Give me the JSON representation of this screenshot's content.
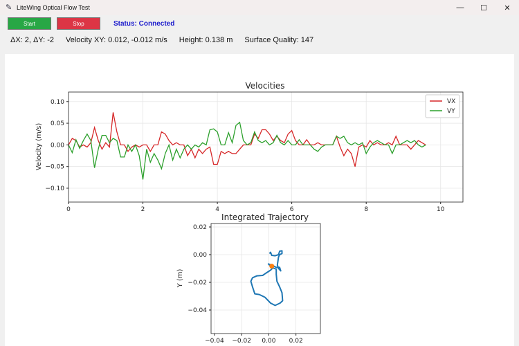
{
  "window": {
    "title": "LiteWing Optical Flow Test",
    "controls": {
      "minimize": "—",
      "maximize": "☐",
      "close": "✕"
    }
  },
  "toolbar": {
    "start_label": "Start",
    "stop_label": "Stop",
    "status": "Status: Connected",
    "start_color": "#28a745",
    "stop_color": "#dc3545",
    "status_color": "#1a1acc"
  },
  "readouts": {
    "delta": "ΔX: 2, ΔY: -2",
    "velocity": "Velocity XY: 0.012, -0.012 m/s",
    "height": "Height: 0.138 m",
    "surface_quality": "Surface Quality: 147"
  },
  "chart_data": [
    {
      "type": "line",
      "title": "Velocities",
      "xlabel": "",
      "ylabel": "Velocity (m/s)",
      "xlim": [
        0,
        10.6
      ],
      "ylim": [
        -0.132,
        0.122
      ],
      "xticks": [
        "0",
        "2",
        "4",
        "6",
        "8",
        "10"
      ],
      "yticks": [
        "0.10",
        "0.05",
        "0.00",
        "−0.05",
        "−0.10"
      ],
      "grid": true,
      "legend": "top-right",
      "x_start": 0,
      "x_step": 0.1,
      "series": [
        {
          "name": "VX",
          "color": "#d62728",
          "values": [
            0,
            0.015,
            0.01,
            -0.005,
            0,
            -0.005,
            0.005,
            0.04,
            0.01,
            -0.01,
            0.005,
            -0.005,
            0.075,
            0.03,
            0,
            0,
            -0.015,
            -0.005,
            0,
            -0.005,
            0,
            0,
            -0.015,
            0,
            0,
            0.03,
            0.025,
            0.01,
            0,
            0.005,
            0,
            0,
            -0.025,
            -0.01,
            -0.03,
            -0.01,
            -0.02,
            -0.01,
            -0.005,
            -0.045,
            -0.045,
            -0.015,
            -0.02,
            -0.015,
            -0.02,
            -0.02,
            -0.01,
            0,
            0,
            0,
            0.025,
            0.015,
            0.035,
            0.035,
            0.025,
            0.01,
            0.02,
            0.01,
            0.005,
            0.025,
            0.033,
            0.01,
            0,
            0,
            0.012,
            0,
            0,
            0.005,
            0,
            0,
            0,
            0,
            0.02,
            -0.005,
            -0.025,
            -0.01,
            -0.02,
            -0.05,
            -0.005,
            0,
            -0.005,
            0.01,
            0,
            0.005,
            0,
            0,
            0.005,
            0,
            0.02,
            0,
            0,
            0,
            -0.01,
            0,
            0.01,
            0.005,
            0
          ]
        },
        {
          "name": "VY",
          "color": "#2ca02c",
          "values": [
            0,
            -0.018,
            0.012,
            -0.008,
            0.01,
            0.025,
            0.01,
            -0.053,
            -0.01,
            0.022,
            0.022,
            0.005,
            0.015,
            0.01,
            -0.028,
            -0.028,
            0,
            -0.015,
            0,
            -0.025,
            -0.08,
            -0.01,
            -0.04,
            -0.02,
            -0.035,
            -0.055,
            -0.02,
            0,
            -0.035,
            -0.01,
            -0.03,
            -0.01,
            0,
            -0.01,
            0,
            -0.005,
            0.005,
            0,
            0.035,
            0.037,
            0.03,
            0,
            0,
            0.028,
            0.005,
            0.045,
            0.052,
            0.01,
            0,
            0.005,
            0.03,
            0.01,
            0.005,
            0.01,
            0,
            0.005,
            0.022,
            0.005,
            0,
            0.01,
            0,
            0,
            0.012,
            0,
            0,
            0,
            -0.01,
            -0.015,
            -0.005,
            0,
            0,
            0,
            0.02,
            0.015,
            0.02,
            0.005,
            0,
            0.005,
            0,
            0.005,
            -0.02,
            -0.005,
            0.005,
            0.01,
            0.005,
            0,
            0,
            -0.02,
            0,
            0,
            0.005,
            0.01,
            0.005,
            0.01,
            0,
            -0.005,
            0
          ]
        }
      ]
    },
    {
      "type": "line",
      "title": "Integrated Trajectory",
      "xlabel": "",
      "ylabel": "Y (m)",
      "xlim": [
        -0.0425,
        0.038
      ],
      "ylim": [
        -0.057,
        0.0225
      ],
      "xticks": [
        "−0.04",
        "−0.02",
        "0.00",
        "0.02"
      ],
      "yticks": [
        "0.02",
        "0.00",
        "−0.02",
        "−0.04"
      ],
      "grid": true,
      "path_color": "#1f77b4",
      "current_color": "#ff7f0e",
      "x": [
        0.0005,
        0.0013,
        0.0022,
        0.0047,
        0.0072,
        0.008,
        0.0097,
        0.0097,
        0.008,
        0.0072,
        0.0063,
        0.0072,
        0.0088,
        0.008,
        0.0055,
        0.0022,
        -0.0003,
        0.0013,
        0.003,
        0.0055,
        0.0055,
        0.006,
        0.008,
        0.0097,
        0.0102,
        0.0083,
        0.0047,
        0.0013,
        -0.0028,
        -0.007,
        -0.0103,
        -0.012,
        -0.0132,
        -0.012,
        -0.0087,
        -0.0045,
        -0.002,
        0.0013,
        0.003
      ],
      "y": [
        0.0008,
        0.0017,
        -0.0005,
        -0.0008,
        0,
        0.0025,
        0.0028,
        0.0008,
        0,
        -0.0017,
        -0.0075,
        -0.01,
        -0.0117,
        -0.0092,
        -0.0092,
        -0.0075,
        -0.0067,
        -0.0083,
        -0.0095,
        -0.0105,
        -0.0142,
        -0.0192,
        -0.0233,
        -0.0275,
        -0.0333,
        -0.035,
        -0.0367,
        -0.035,
        -0.0308,
        -0.0288,
        -0.0283,
        -0.0233,
        -0.0192,
        -0.0167,
        -0.0153,
        -0.015,
        -0.0133,
        -0.0112,
        -0.0095
      ],
      "current": {
        "x": 0.0022,
        "y": -0.0083
      }
    }
  ]
}
